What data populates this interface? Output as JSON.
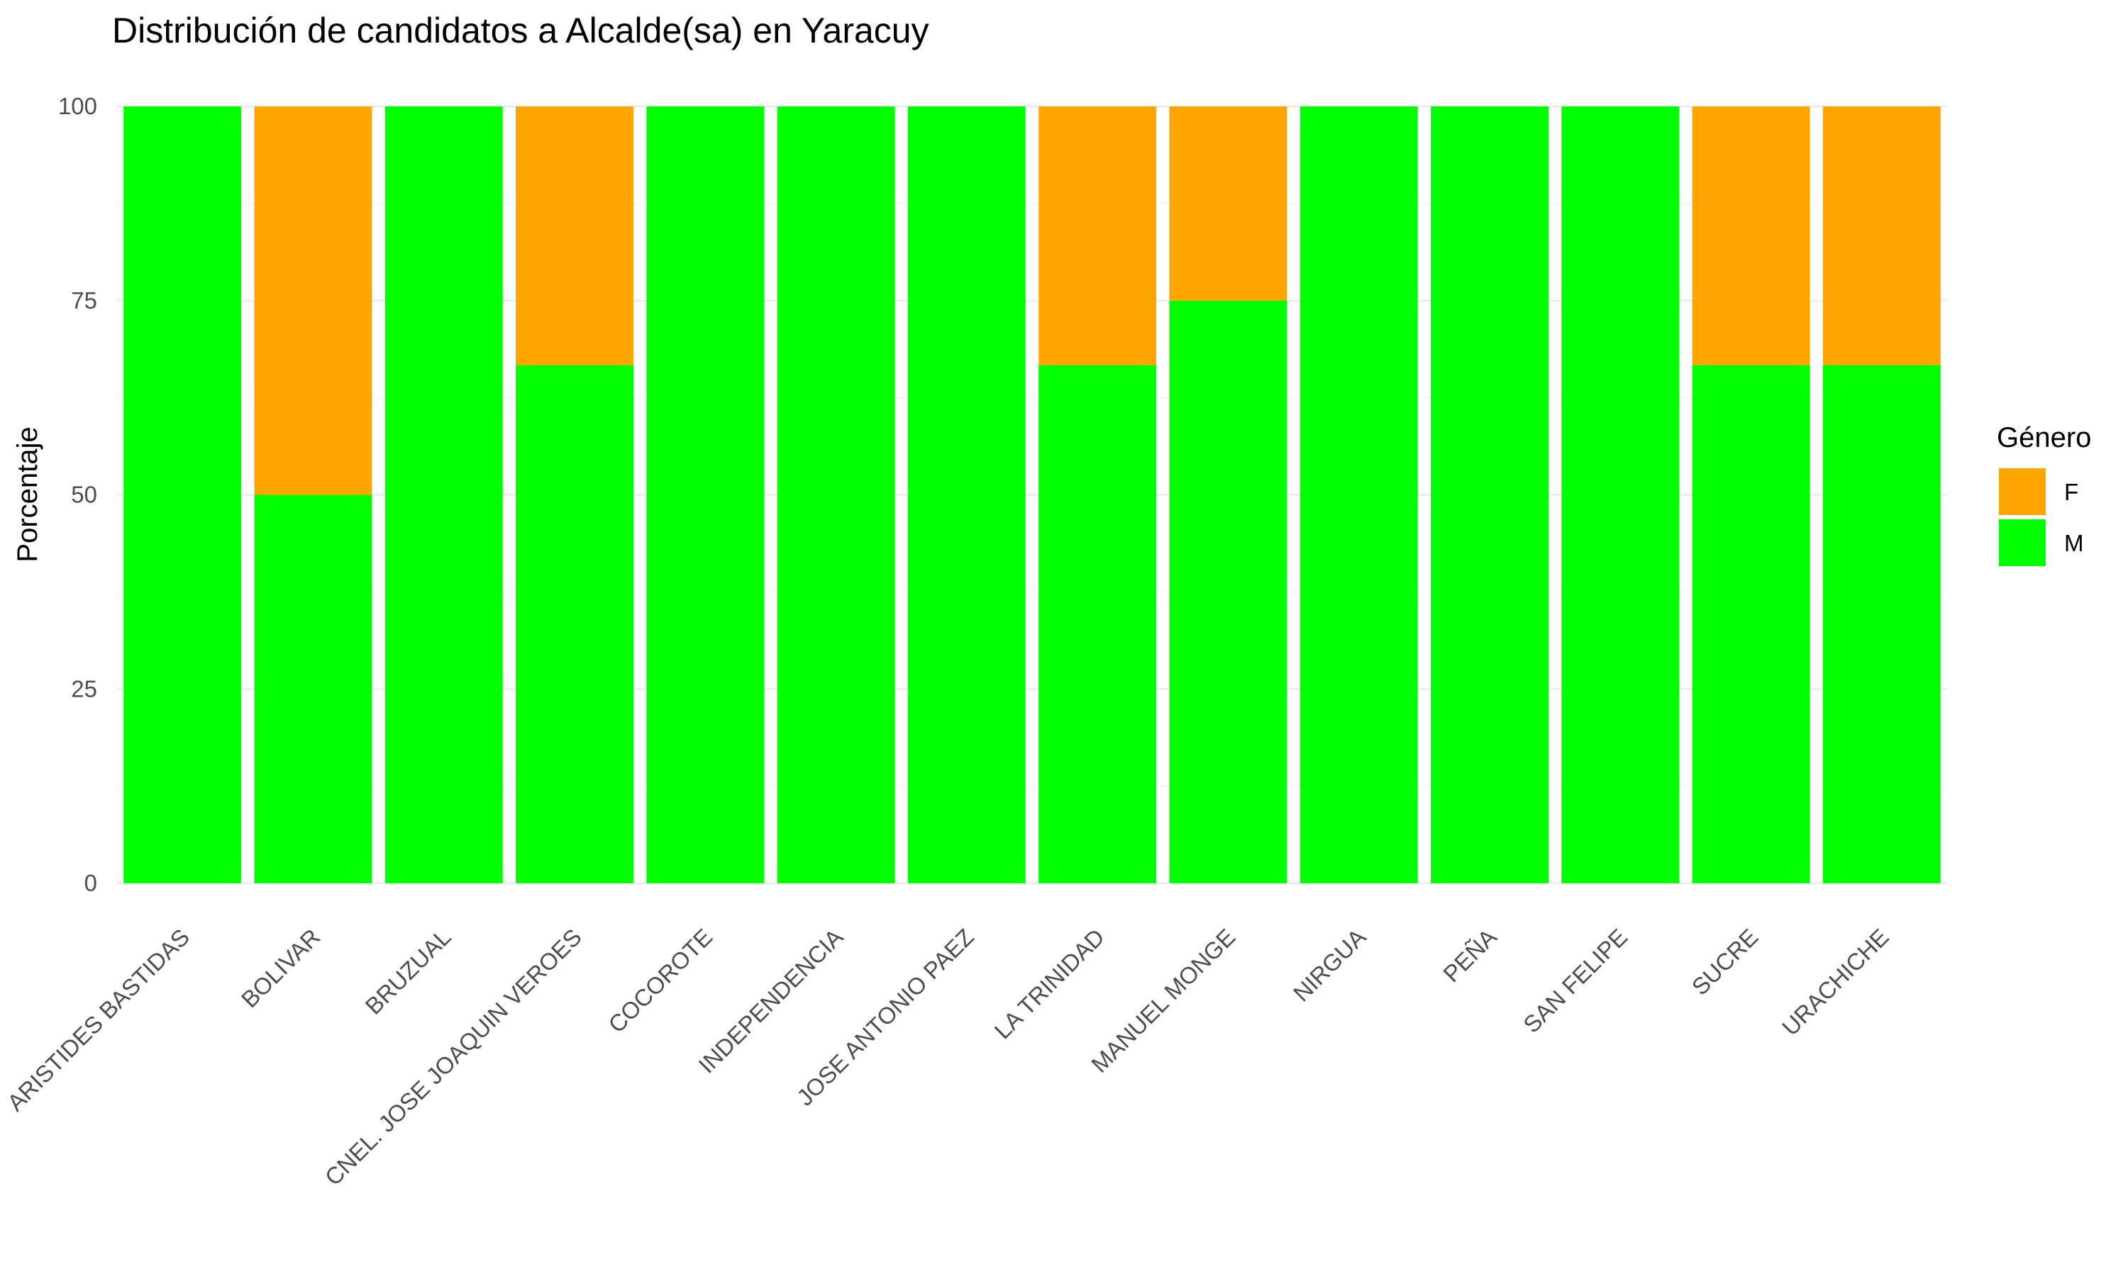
{
  "chart_data": {
    "type": "bar",
    "stacked": true,
    "title": "Distribución de candidatos a Alcalde(sa) en Yaracuy",
    "xlabel": "",
    "ylabel": "Porcentaje",
    "ylim": [
      0,
      100
    ],
    "yticks": [
      0,
      25,
      50,
      75,
      100
    ],
    "grid": true,
    "legend": {
      "title": "Género",
      "position": "right"
    },
    "categories": [
      "ARISTIDES BASTIDAS",
      "BOLIVAR",
      "BRUZUAL",
      "CNEL. JOSE JOAQUIN VEROES",
      "COCOROTE",
      "INDEPENDENCIA",
      "JOSE ANTONIO PAEZ",
      "LA TRINIDAD",
      "MANUEL MONGE",
      "NIRGUA",
      "PEÑA",
      "SAN FELIPE",
      "SUCRE",
      "URACHICHE"
    ],
    "series": [
      {
        "name": "F",
        "color": "#FFA500",
        "values": [
          0,
          50,
          0,
          33.3,
          0,
          0,
          0,
          33.3,
          25,
          0,
          0,
          0,
          33.3,
          33.3
        ]
      },
      {
        "name": "M",
        "color": "#00FF00",
        "values": [
          100,
          50,
          100,
          66.7,
          100,
          100,
          100,
          66.7,
          75,
          100,
          100,
          100,
          66.7,
          66.7
        ]
      }
    ]
  }
}
